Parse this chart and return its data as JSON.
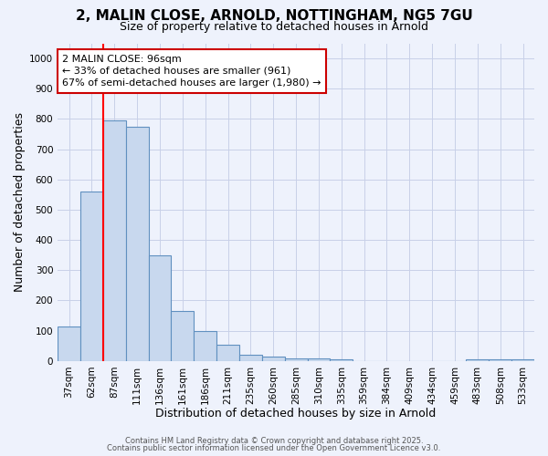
{
  "title_line1": "2, MALIN CLOSE, ARNOLD, NOTTINGHAM, NG5 7GU",
  "title_line2": "Size of property relative to detached houses in Arnold",
  "categories": [
    "37sqm",
    "62sqm",
    "87sqm",
    "111sqm",
    "136sqm",
    "161sqm",
    "186sqm",
    "211sqm",
    "235sqm",
    "260sqm",
    "285sqm",
    "310sqm",
    "335sqm",
    "359sqm",
    "384sqm",
    "409sqm",
    "434sqm",
    "459sqm",
    "483sqm",
    "508sqm",
    "533sqm"
  ],
  "values": [
    115,
    560,
    795,
    775,
    350,
    165,
    100,
    55,
    20,
    15,
    10,
    10,
    5,
    0,
    0,
    0,
    0,
    0,
    5,
    5,
    5
  ],
  "bar_color": "#c8d8ee",
  "bar_edge_color": "#6090c0",
  "red_line_x": 1.5,
  "xlabel": "Distribution of detached houses by size in Arnold",
  "ylabel": "Number of detached properties",
  "ylim": [
    0,
    1050
  ],
  "yticks": [
    0,
    100,
    200,
    300,
    400,
    500,
    600,
    700,
    800,
    900,
    1000
  ],
  "annotation_text": "2 MALIN CLOSE: 96sqm\n← 33% of detached houses are smaller (961)\n67% of semi-detached houses are larger (1,980) →",
  "annotation_box_color": "#ffffff",
  "annotation_border_color": "#cc0000",
  "footer_line1": "Contains HM Land Registry data © Crown copyright and database right 2025.",
  "footer_line2": "Contains public sector information licensed under the Open Government Licence v3.0.",
  "background_color": "#eef2fc",
  "grid_color": "#c8d0e8",
  "title1_fontsize": 11,
  "title2_fontsize": 9,
  "axis_fontsize": 8,
  "xlabel_fontsize": 9,
  "ylabel_fontsize": 9,
  "tick_fontsize": 7.5,
  "annot_fontsize": 8,
  "footer_fontsize": 6
}
